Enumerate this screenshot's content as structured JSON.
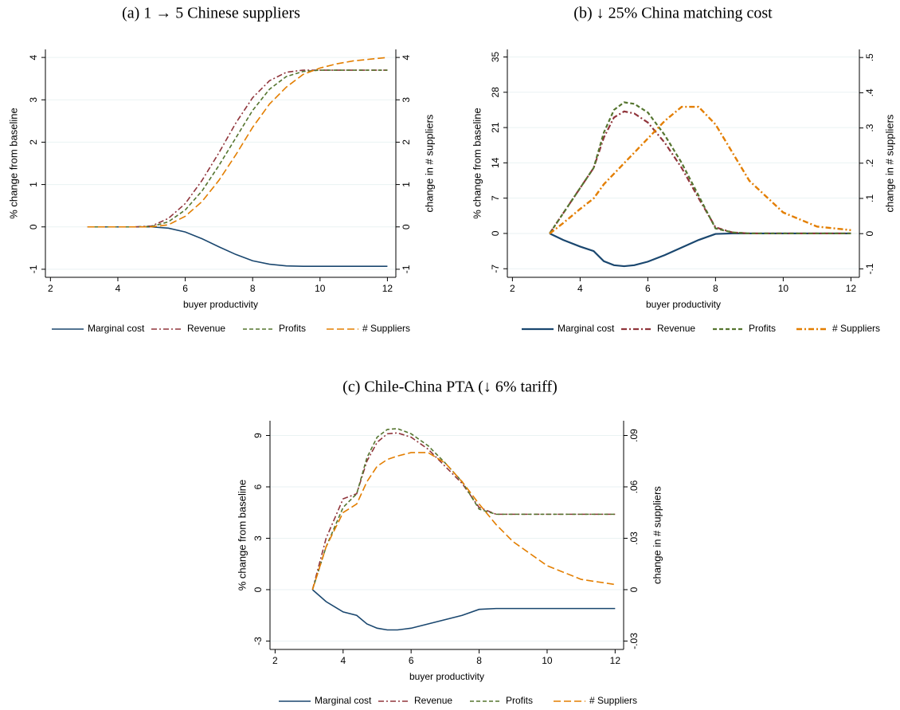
{
  "chart_data": [
    {
      "type": "line",
      "title": "(a) 1 → 5 Chinese suppliers",
      "x_label": "buyer productivity",
      "y_label": "% change from baseline",
      "y2_label": "change in # suppliers",
      "x": [
        3.1,
        3.5,
        4,
        4.5,
        5,
        5.5,
        6,
        6.5,
        7,
        7.5,
        8,
        8.5,
        9,
        9.5,
        10,
        10.5,
        11,
        11.5,
        12
      ],
      "xlim": [
        1.85,
        12.25
      ],
      "xticks": [
        2,
        4,
        6,
        8,
        10,
        12
      ],
      "ylim": [
        -1.19,
        4.19
      ],
      "yticks": [
        -1,
        0,
        1,
        2,
        3,
        4
      ],
      "y2lim": [
        -1.19,
        4.19
      ],
      "y2ticks": [
        -1,
        0,
        1,
        2,
        3,
        4
      ],
      "grid": true,
      "series": [
        {
          "name": "Marginal cost",
          "color": "#1a476f",
          "dash": "solid",
          "values": [
            0,
            0,
            0,
            0,
            0,
            -0.03,
            -0.12,
            -0.28,
            -0.47,
            -0.65,
            -0.8,
            -0.88,
            -0.92,
            -0.93,
            -0.93,
            -0.93,
            -0.93,
            -0.93,
            -0.93
          ]
        },
        {
          "name": "Revenue",
          "color": "#90353b",
          "dash": "dash-dot",
          "values": [
            0,
            0,
            0,
            0,
            0.02,
            0.2,
            0.55,
            1.1,
            1.75,
            2.45,
            3.05,
            3.45,
            3.65,
            3.7,
            3.7,
            3.7,
            3.7,
            3.7,
            3.7
          ]
        },
        {
          "name": "Profits",
          "color": "#55752f",
          "dash": "dash",
          "values": [
            0,
            0,
            0,
            0,
            0.01,
            0.12,
            0.4,
            0.85,
            1.45,
            2.1,
            2.75,
            3.25,
            3.55,
            3.67,
            3.7,
            3.7,
            3.7,
            3.7,
            3.7
          ]
        },
        {
          "name": "# Suppliers",
          "color": "#e37e00",
          "dash": "long-dash",
          "axis": "y2",
          "values": [
            0,
            0,
            0,
            0,
            0,
            0.05,
            0.25,
            0.6,
            1.1,
            1.7,
            2.35,
            2.9,
            3.3,
            3.6,
            3.75,
            3.85,
            3.92,
            3.96,
            4.0
          ]
        }
      ]
    },
    {
      "type": "line",
      "title": "(b) ↓ 25% China matching cost",
      "x_label": "buyer productivity",
      "y_label": "% change from baseline",
      "y2_label": "change in # suppliers",
      "x": [
        3.1,
        3.5,
        4,
        4.4,
        4.7,
        5,
        5.3,
        5.6,
        6,
        6.5,
        7,
        7.5,
        8,
        8.5,
        9,
        10,
        11,
        12
      ],
      "xlim": [
        1.85,
        12.25
      ],
      "xticks": [
        2,
        4,
        6,
        8,
        10,
        12
      ],
      "ylim": [
        -8.7,
        36.5
      ],
      "yticks": [
        -7,
        0,
        7,
        14,
        21,
        28,
        35
      ],
      "y2lim": [
        -0.124,
        0.523
      ],
      "y2ticks": [
        {
          "value": -0.1,
          "label": "-.1"
        },
        0,
        {
          "value": 0.1,
          "label": ".1"
        },
        {
          "value": 0.2,
          "label": ".2"
        },
        {
          "value": 0.3,
          "label": ".3"
        },
        {
          "value": 0.4,
          "label": ".4"
        },
        {
          "value": 0.5,
          "label": ".5"
        }
      ],
      "grid": true,
      "series": [
        {
          "name": "Marginal cost",
          "color": "#1a476f",
          "dash": "solid",
          "values": [
            0,
            -1.3,
            -2.6,
            -3.5,
            -5.5,
            -6.3,
            -6.5,
            -6.3,
            -5.6,
            -4.3,
            -2.8,
            -1.3,
            -0.1,
            0,
            0,
            0,
            0,
            0
          ]
        },
        {
          "name": "Revenue",
          "color": "#90353b",
          "dash": "dash-dot",
          "values": [
            0,
            4,
            9,
            13,
            19,
            23,
            24.2,
            23.8,
            22,
            18,
            13,
            7,
            1.2,
            0.2,
            0,
            0,
            0,
            0
          ]
        },
        {
          "name": "Profits",
          "color": "#55752f",
          "dash": "dash",
          "values": [
            0,
            4,
            9,
            13,
            20,
            24.5,
            26,
            25.7,
            24,
            19.5,
            14,
            7.5,
            1,
            0.2,
            0,
            0,
            0,
            0
          ]
        },
        {
          "name": "# Suppliers",
          "color": "#e37e00",
          "dash": "dash-dot",
          "axis": "y2",
          "values": [
            0,
            0.03,
            0.07,
            0.1,
            0.14,
            0.17,
            0.2,
            0.23,
            0.27,
            0.32,
            0.36,
            0.36,
            0.31,
            0.23,
            0.15,
            0.06,
            0.02,
            0.01
          ]
        }
      ]
    },
    {
      "type": "line",
      "title": "(c) Chile-China PTA (↓ 6% tariff)",
      "x_label": "buyer productivity",
      "y_label": "% change from baseline",
      "y2_label": "change in # suppliers",
      "x": [
        3.1,
        3.5,
        4,
        4.4,
        4.7,
        5,
        5.3,
        5.6,
        6,
        6.5,
        7,
        7.5,
        8,
        8.5,
        9,
        10,
        11,
        12
      ],
      "xlim": [
        1.85,
        12.25
      ],
      "xticks": [
        2,
        4,
        6,
        8,
        10,
        12
      ],
      "ylim": [
        -3.49,
        9.86
      ],
      "yticks": [
        -3,
        0,
        3,
        6,
        9
      ],
      "y2lim": [
        -0.0349,
        0.0986
      ],
      "y2ticks": [
        {
          "value": -0.03,
          "label": "-.03"
        },
        0,
        {
          "value": 0.03,
          "label": ".03"
        },
        {
          "value": 0.06,
          "label": ".06"
        },
        {
          "value": 0.09,
          "label": ".09"
        }
      ],
      "grid": true,
      "series": [
        {
          "name": "Marginal cost",
          "color": "#1a476f",
          "dash": "solid",
          "values": [
            0,
            -0.7,
            -1.3,
            -1.5,
            -2,
            -2.25,
            -2.35,
            -2.35,
            -2.25,
            -2,
            -1.75,
            -1.5,
            -1.15,
            -1.1,
            -1.1,
            -1.1,
            -1.1,
            -1.1
          ]
        },
        {
          "name": "Revenue",
          "color": "#90353b",
          "dash": "dash-dot",
          "values": [
            0,
            3,
            5.3,
            5.6,
            7.5,
            8.6,
            9.1,
            9.15,
            8.9,
            8.2,
            7.2,
            6.2,
            4.8,
            4.4,
            4.4,
            4.4,
            4.4,
            4.4
          ]
        },
        {
          "name": "Profits",
          "color": "#55752f",
          "dash": "dash",
          "values": [
            0,
            2.5,
            4.8,
            5.6,
            7.7,
            8.9,
            9.35,
            9.4,
            9.1,
            8.4,
            7.4,
            6.3,
            4.7,
            4.4,
            4.4,
            4.4,
            4.4,
            4.4
          ]
        },
        {
          "name": "# Suppliers",
          "color": "#e37e00",
          "dash": "long-dash",
          "axis": "y2",
          "values": [
            0,
            0.025,
            0.045,
            0.05,
            0.063,
            0.072,
            0.076,
            0.078,
            0.08,
            0.08,
            0.074,
            0.063,
            0.05,
            0.038,
            0.028,
            0.014,
            0.006,
            0.003
          ]
        }
      ]
    }
  ]
}
